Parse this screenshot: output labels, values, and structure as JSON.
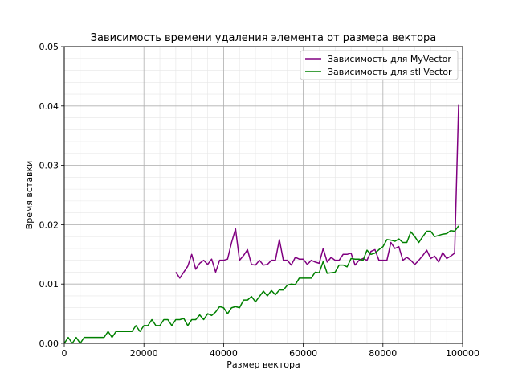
{
  "chart_data": {
    "type": "line",
    "title": "Зависимость времени удаления элемента от размера вектора",
    "xlabel": "Размер вектора",
    "ylabel": "Время вставки",
    "xlim": [
      0,
      100000
    ],
    "ylim": [
      0,
      0.05
    ],
    "x_ticks": [
      "0",
      "20000",
      "40000",
      "60000",
      "80000",
      "100000"
    ],
    "y_ticks": [
      "0.00",
      "0.01",
      "0.02",
      "0.03",
      "0.04",
      "0.05"
    ],
    "grid": "major-and-minor",
    "legend_position": "top-right",
    "series": [
      {
        "name": "Зависимость для MyVector",
        "color": "#800080",
        "x": [
          28000,
          29000,
          30000,
          31000,
          32000,
          33000,
          34000,
          35000,
          36000,
          37000,
          38000,
          39000,
          40000,
          41000,
          42000,
          43000,
          44000,
          45000,
          46000,
          47000,
          48000,
          49000,
          50000,
          51000,
          52000,
          53000,
          54000,
          55000,
          56000,
          57000,
          58000,
          59000,
          60000,
          61000,
          62000,
          63000,
          64000,
          65000,
          66000,
          67000,
          68000,
          69000,
          70000,
          71000,
          72000,
          73000,
          74000,
          75000,
          76000,
          77000,
          78000,
          79000,
          80000,
          81000,
          82000,
          83000,
          84000,
          85000,
          86000,
          87000,
          88000,
          89000,
          90000,
          91000,
          92000,
          93000,
          94000,
          95000,
          96000,
          97000,
          98000,
          99000
        ],
        "y": [
          0.012,
          0.011,
          0.012,
          0.013,
          0.015,
          0.0125,
          0.0135,
          0.014,
          0.0133,
          0.0142,
          0.012,
          0.014,
          0.014,
          0.0142,
          0.017,
          0.0193,
          0.014,
          0.0148,
          0.0158,
          0.0133,
          0.0132,
          0.014,
          0.0132,
          0.0133,
          0.014,
          0.014,
          0.0175,
          0.014,
          0.014,
          0.0132,
          0.0145,
          0.0142,
          0.0142,
          0.0133,
          0.014,
          0.0137,
          0.0135,
          0.016,
          0.0137,
          0.0145,
          0.014,
          0.014,
          0.015,
          0.015,
          0.0152,
          0.0132,
          0.014,
          0.0143,
          0.014,
          0.0155,
          0.0158,
          0.014,
          0.014,
          0.014,
          0.017,
          0.016,
          0.0163,
          0.014,
          0.0145,
          0.014,
          0.0133,
          0.014,
          0.0148,
          0.0157,
          0.0143,
          0.0147,
          0.0137,
          0.0153,
          0.0143,
          0.0147,
          0.0152,
          0.0403
        ]
      },
      {
        "name": "Зависимость для stl Vector",
        "color": "#008000",
        "x": [
          0,
          1000,
          2000,
          3000,
          4000,
          5000,
          6000,
          7000,
          8000,
          9000,
          10000,
          11000,
          12000,
          13000,
          14000,
          15000,
          16000,
          17000,
          18000,
          19000,
          20000,
          21000,
          22000,
          23000,
          24000,
          25000,
          26000,
          27000,
          28000,
          29000,
          30000,
          31000,
          32000,
          33000,
          34000,
          35000,
          36000,
          37000,
          38000,
          39000,
          40000,
          41000,
          42000,
          43000,
          44000,
          45000,
          46000,
          47000,
          48000,
          49000,
          50000,
          51000,
          52000,
          53000,
          54000,
          55000,
          56000,
          57000,
          58000,
          59000,
          60000,
          61000,
          62000,
          63000,
          64000,
          65000,
          66000,
          67000,
          68000,
          69000,
          70000,
          71000,
          72000,
          73000,
          74000,
          75000,
          76000,
          77000,
          78000,
          79000,
          80000,
          81000,
          82000,
          83000,
          84000,
          85000,
          86000,
          87000,
          88000,
          89000,
          90000,
          91000,
          92000,
          93000,
          94000,
          95000,
          96000,
          97000,
          98000,
          99000
        ],
        "y": [
          0.0,
          0.001,
          0.0,
          0.001,
          0.0,
          0.001,
          0.001,
          0.001,
          0.001,
          0.001,
          0.001,
          0.002,
          0.001,
          0.002,
          0.002,
          0.002,
          0.002,
          0.002,
          0.003,
          0.002,
          0.003,
          0.003,
          0.004,
          0.003,
          0.003,
          0.004,
          0.004,
          0.003,
          0.004,
          0.004,
          0.0042,
          0.003,
          0.004,
          0.004,
          0.0048,
          0.004,
          0.005,
          0.0047,
          0.0053,
          0.0062,
          0.006,
          0.005,
          0.006,
          0.0062,
          0.006,
          0.0073,
          0.0073,
          0.0079,
          0.007,
          0.0079,
          0.0088,
          0.008,
          0.0089,
          0.0082,
          0.009,
          0.009,
          0.0098,
          0.01,
          0.0099,
          0.011,
          0.011,
          0.011,
          0.011,
          0.012,
          0.0119,
          0.0138,
          0.0118,
          0.0119,
          0.012,
          0.0132,
          0.0132,
          0.0129,
          0.0143,
          0.0142,
          0.0142,
          0.014,
          0.0157,
          0.015,
          0.0152,
          0.0158,
          0.0163,
          0.0175,
          0.0174,
          0.0172,
          0.0176,
          0.017,
          0.017,
          0.0188,
          0.018,
          0.017,
          0.018,
          0.0189,
          0.0189,
          0.018,
          0.0182,
          0.0184,
          0.0185,
          0.019,
          0.0189,
          0.0198
        ]
      }
    ]
  }
}
